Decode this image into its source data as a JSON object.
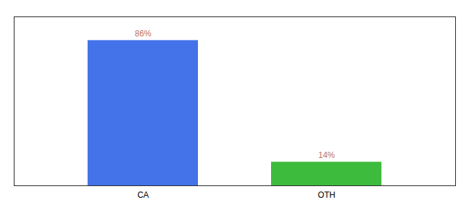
{
  "chart_data": {
    "type": "bar",
    "categories": [
      "CA",
      "OTH"
    ],
    "values": [
      86,
      14
    ],
    "value_labels": [
      "86%",
      "14%"
    ],
    "colors": [
      "#4472e8",
      "#3dbb3d"
    ],
    "ylim": [
      0,
      100
    ],
    "yticks": [],
    "tick_labels": "x",
    "data_labels": true,
    "grid": false
  }
}
